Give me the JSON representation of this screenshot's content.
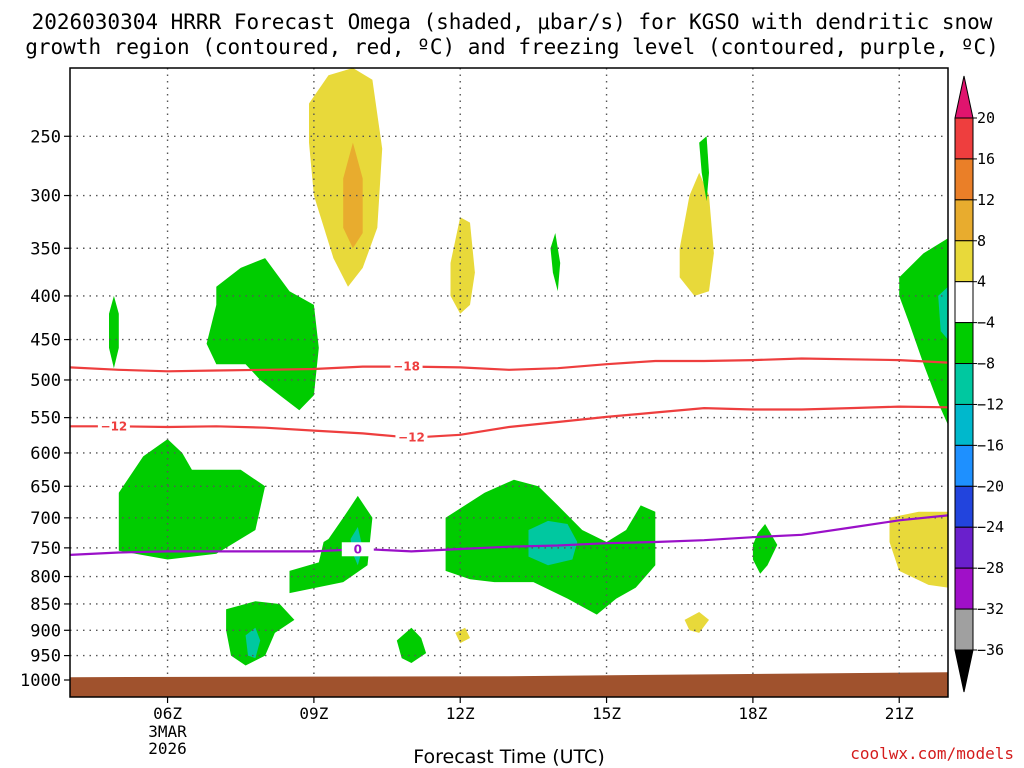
{
  "title": {
    "line1": "2026030304 HRRR Forecast Omega (shaded, μbar/s) for KGSO with dendritic snow",
    "line2": "growth region (contoured, red, ºC) and freezing level (contoured, purple, ºC)"
  },
  "xlabel": "Forecast Time (UTC)",
  "credit": "coolwx.com/models",
  "chart_data": {
    "type": "heatmap",
    "x_units": "forecast hour (hours after 2026-03-03 04Z)",
    "xlim": [
      0,
      18
    ],
    "y_units": "pressure (mb)",
    "ylim_top_to_bottom": [
      200,
      1000
    ],
    "x_ticks": [
      {
        "x": 2,
        "label": "06Z"
      },
      {
        "x": 5,
        "label": "09Z"
      },
      {
        "x": 8,
        "label": "12Z"
      },
      {
        "x": 11,
        "label": "15Z"
      },
      {
        "x": 14,
        "label": "18Z"
      },
      {
        "x": 17,
        "label": "21Z"
      }
    ],
    "date_label": [
      "3MAR",
      "2026"
    ],
    "y_ticks": [
      250,
      300,
      350,
      400,
      450,
      500,
      550,
      600,
      650,
      700,
      750,
      800,
      850,
      900,
      950,
      1000
    ],
    "colorbar": {
      "labels": [
        20,
        16,
        12,
        8,
        4,
        -4,
        -8,
        -12,
        -16,
        -20,
        -24,
        -28,
        -32,
        -36
      ],
      "bins": [
        {
          "lo": 16,
          "hi": 20,
          "color": "#ee3e3e"
        },
        {
          "lo": 12,
          "hi": 16,
          "color": "#ea7f28"
        },
        {
          "lo": 8,
          "hi": 12,
          "color": "#e8ac2e"
        },
        {
          "lo": 4,
          "hi": 8,
          "color": "#e8d93a"
        },
        {
          "lo": -4,
          "hi": 4,
          "color": "#ffffff"
        },
        {
          "lo": -8,
          "hi": -4,
          "color": "#00cc00"
        },
        {
          "lo": -12,
          "hi": -8,
          "color": "#00c8a0"
        },
        {
          "lo": -16,
          "hi": -12,
          "color": "#00b8cc"
        },
        {
          "lo": -20,
          "hi": -16,
          "color": "#1e90ff"
        },
        {
          "lo": -24,
          "hi": -20,
          "color": "#2244dd"
        },
        {
          "lo": -28,
          "hi": -24,
          "color": "#6a20cc"
        },
        {
          "lo": -32,
          "hi": -28,
          "color": "#a010c8"
        },
        {
          "lo": -36,
          "hi": -32,
          "color": "#a0a0a0"
        }
      ],
      "over_color": "#e0146e",
      "under_color": "#000000"
    },
    "omega_regions": [
      {
        "value": 6,
        "color": "#e8d93a",
        "points": [
          [
            4.9,
            225
          ],
          [
            5.3,
            205
          ],
          [
            5.8,
            200
          ],
          [
            6.2,
            208
          ],
          [
            6.4,
            260
          ],
          [
            6.3,
            330
          ],
          [
            6.0,
            370
          ],
          [
            5.7,
            390
          ],
          [
            5.4,
            360
          ],
          [
            5.0,
            300
          ],
          [
            4.9,
            255
          ]
        ]
      },
      {
        "value": 10,
        "color": "#e8ac2e",
        "points": [
          [
            5.6,
            285
          ],
          [
            5.8,
            255
          ],
          [
            6.0,
            285
          ],
          [
            6.0,
            335
          ],
          [
            5.8,
            350
          ],
          [
            5.6,
            330
          ]
        ]
      },
      {
        "value": 6,
        "color": "#e8d93a",
        "points": [
          [
            7.8,
            365
          ],
          [
            8.0,
            320
          ],
          [
            8.2,
            325
          ],
          [
            8.3,
            375
          ],
          [
            8.2,
            410
          ],
          [
            8.0,
            420
          ],
          [
            7.8,
            400
          ]
        ]
      },
      {
        "value": 6,
        "color": "#e8d93a",
        "points": [
          [
            12.5,
            350
          ],
          [
            12.7,
            300
          ],
          [
            12.9,
            280
          ],
          [
            13.1,
            300
          ],
          [
            13.2,
            355
          ],
          [
            13.1,
            395
          ],
          [
            12.8,
            400
          ],
          [
            12.5,
            380
          ]
        ]
      },
      {
        "value": 6,
        "color": "#e8d93a",
        "points": [
          [
            16.8,
            700
          ],
          [
            17.4,
            690
          ],
          [
            18,
            690
          ],
          [
            18,
            820
          ],
          [
            17.6,
            815
          ],
          [
            17.0,
            790
          ],
          [
            16.8,
            740
          ]
        ]
      },
      {
        "value": 6,
        "color": "#e8d93a",
        "points": [
          [
            12.6,
            880
          ],
          [
            12.9,
            865
          ],
          [
            13.1,
            880
          ],
          [
            12.9,
            905
          ],
          [
            12.7,
            900
          ]
        ]
      },
      {
        "value": 6,
        "color": "#e8d93a",
        "points": [
          [
            7.9,
            905
          ],
          [
            8.1,
            895
          ],
          [
            8.2,
            915
          ],
          [
            8.0,
            925
          ]
        ]
      },
      {
        "value": -6,
        "color": "#00cc00",
        "points": [
          [
            0.8,
            420
          ],
          [
            0.9,
            400
          ],
          [
            1.0,
            420
          ],
          [
            1.0,
            460
          ],
          [
            0.9,
            485
          ],
          [
            0.8,
            460
          ]
        ]
      },
      {
        "value": -6,
        "color": "#00cc00",
        "points": [
          [
            3.0,
            390
          ],
          [
            3.5,
            370
          ],
          [
            4.0,
            360
          ],
          [
            4.5,
            395
          ],
          [
            5.0,
            410
          ],
          [
            5.1,
            460
          ],
          [
            5.0,
            520
          ],
          [
            4.7,
            540
          ],
          [
            4.3,
            520
          ],
          [
            3.9,
            500
          ],
          [
            3.6,
            480
          ],
          [
            3.0,
            480
          ],
          [
            2.8,
            455
          ],
          [
            3.0,
            410
          ]
        ]
      },
      {
        "value": -6,
        "color": "#00cc00",
        "points": [
          [
            12.9,
            255
          ],
          [
            13.05,
            250
          ],
          [
            13.1,
            280
          ],
          [
            13.05,
            305
          ],
          [
            12.95,
            280
          ]
        ]
      },
      {
        "value": -6,
        "color": "#00cc00",
        "points": [
          [
            9.85,
            350
          ],
          [
            9.95,
            335
          ],
          [
            10.05,
            365
          ],
          [
            10.0,
            395
          ],
          [
            9.9,
            375
          ]
        ]
      },
      {
        "value": -6,
        "color": "#00cc00",
        "points": [
          [
            17.0,
            380
          ],
          [
            17.5,
            355
          ],
          [
            18,
            340
          ],
          [
            18,
            560
          ],
          [
            17.8,
            530
          ],
          [
            17.5,
            480
          ],
          [
            17.2,
            430
          ],
          [
            17.0,
            400
          ]
        ]
      },
      {
        "value": -10,
        "color": "#00c8a0",
        "points": [
          [
            17.8,
            400
          ],
          [
            18,
            390
          ],
          [
            18,
            450
          ],
          [
            17.85,
            440
          ]
        ]
      },
      {
        "value": -6,
        "color": "#00cc00",
        "points": [
          [
            1.0,
            660
          ],
          [
            1.5,
            605
          ],
          [
            2.0,
            580
          ],
          [
            2.3,
            600
          ],
          [
            2.5,
            625
          ],
          [
            3.5,
            625
          ],
          [
            4.0,
            650
          ],
          [
            3.8,
            720
          ],
          [
            3.0,
            760
          ],
          [
            2.0,
            770
          ],
          [
            1.0,
            755
          ],
          [
            1.0,
            680
          ]
        ]
      },
      {
        "value": -6,
        "color": "#00cc00",
        "points": [
          [
            5.3,
            735
          ],
          [
            5.6,
            700
          ],
          [
            5.9,
            665
          ],
          [
            6.2,
            700
          ],
          [
            6.1,
            780
          ],
          [
            5.6,
            810
          ],
          [
            4.5,
            830
          ],
          [
            4.5,
            790
          ],
          [
            5.1,
            775
          ],
          [
            5.2,
            740
          ]
        ]
      },
      {
        "value": -10,
        "color": "#00c8a0",
        "points": [
          [
            5.75,
            735
          ],
          [
            5.9,
            715
          ],
          [
            6.0,
            750
          ],
          [
            5.9,
            780
          ],
          [
            5.8,
            760
          ]
        ]
      },
      {
        "value": -6,
        "color": "#00cc00",
        "points": [
          [
            3.2,
            860
          ],
          [
            3.8,
            845
          ],
          [
            4.3,
            850
          ],
          [
            4.6,
            880
          ],
          [
            4.2,
            905
          ],
          [
            4.0,
            950
          ],
          [
            3.6,
            970
          ],
          [
            3.3,
            950
          ],
          [
            3.2,
            900
          ]
        ]
      },
      {
        "value": -10,
        "color": "#00c8a0",
        "points": [
          [
            3.6,
            910
          ],
          [
            3.8,
            895
          ],
          [
            3.9,
            920
          ],
          [
            3.8,
            955
          ],
          [
            3.65,
            950
          ]
        ]
      },
      {
        "value": -6,
        "color": "#00cc00",
        "points": [
          [
            6.7,
            920
          ],
          [
            7.0,
            895
          ],
          [
            7.2,
            915
          ],
          [
            7.3,
            945
          ],
          [
            7.0,
            965
          ],
          [
            6.8,
            955
          ]
        ]
      },
      {
        "value": -6,
        "color": "#00cc00",
        "points": [
          [
            7.7,
            700
          ],
          [
            8.5,
            660
          ],
          [
            9.1,
            640
          ],
          [
            9.6,
            650
          ],
          [
            10.0,
            680
          ],
          [
            10.5,
            720
          ],
          [
            11.0,
            740
          ],
          [
            11.4,
            720
          ],
          [
            11.7,
            680
          ],
          [
            12.0,
            690
          ],
          [
            12.0,
            780
          ],
          [
            11.6,
            820
          ],
          [
            11.2,
            840
          ],
          [
            10.8,
            870
          ],
          [
            10.2,
            840
          ],
          [
            9.5,
            810
          ],
          [
            8.7,
            810
          ],
          [
            8.2,
            805
          ],
          [
            7.7,
            790
          ],
          [
            7.7,
            720
          ]
        ]
      },
      {
        "value": -10,
        "color": "#00c8a0",
        "points": [
          [
            9.4,
            720
          ],
          [
            9.8,
            705
          ],
          [
            10.2,
            710
          ],
          [
            10.4,
            740
          ],
          [
            10.3,
            770
          ],
          [
            9.8,
            780
          ],
          [
            9.4,
            765
          ]
        ]
      },
      {
        "value": -6,
        "color": "#00cc00",
        "points": [
          [
            14.0,
            745
          ],
          [
            14.1,
            725
          ],
          [
            14.25,
            710
          ],
          [
            14.5,
            745
          ],
          [
            14.3,
            780
          ],
          [
            14.15,
            795
          ],
          [
            14.0,
            770
          ]
        ]
      }
    ],
    "contour_lines": [
      {
        "name": "-18",
        "label": "−18",
        "label_x": 6.9,
        "color": "#ee3e3e",
        "points": [
          [
            0,
            484
          ],
          [
            1,
            487
          ],
          [
            2,
            489
          ],
          [
            3,
            488
          ],
          [
            4,
            487
          ],
          [
            5,
            486
          ],
          [
            6,
            483
          ],
          [
            7,
            483
          ],
          [
            8,
            484
          ],
          [
            9,
            487
          ],
          [
            10,
            485
          ],
          [
            11,
            480
          ],
          [
            12,
            476
          ],
          [
            13,
            476
          ],
          [
            14,
            475
          ],
          [
            15,
            473
          ],
          [
            16,
            474
          ],
          [
            17,
            475
          ],
          [
            18,
            478
          ]
        ]
      },
      {
        "name": "-12",
        "label": "−12",
        "label_x": 0.9,
        "color": "#ee3e3e",
        "points": [
          [
            0,
            562
          ],
          [
            1,
            562
          ],
          [
            2,
            563
          ],
          [
            3,
            562
          ],
          [
            4,
            564
          ],
          [
            5,
            568
          ],
          [
            6,
            572
          ],
          [
            7,
            578
          ],
          [
            8,
            574
          ],
          [
            9,
            563
          ],
          [
            10,
            556
          ],
          [
            11,
            549
          ],
          [
            12,
            543
          ],
          [
            13,
            537
          ],
          [
            14,
            539
          ],
          [
            15,
            539
          ],
          [
            16,
            537
          ],
          [
            17,
            535
          ],
          [
            18,
            536
          ]
        ]
      },
      {
        "name": "-12b",
        "label": "−12",
        "label_x": 7.0,
        "color": "#ee3e3e",
        "label_only": true,
        "points": [
          [
            7,
            578
          ]
        ]
      },
      {
        "name": "0",
        "label": "0",
        "label_x": 5.9,
        "color": "#9a10c8",
        "points": [
          [
            0,
            762
          ],
          [
            1,
            758
          ],
          [
            2,
            756
          ],
          [
            3,
            756
          ],
          [
            4,
            756
          ],
          [
            5,
            756
          ],
          [
            6,
            752
          ],
          [
            7,
            756
          ],
          [
            8,
            752
          ],
          [
            9,
            748
          ],
          [
            10,
            746
          ],
          [
            11,
            742
          ],
          [
            12,
            740
          ],
          [
            13,
            737
          ],
          [
            14,
            732
          ],
          [
            15,
            728
          ],
          [
            16,
            716
          ],
          [
            17,
            704
          ],
          [
            18,
            696
          ]
        ]
      }
    ],
    "ground": {
      "color": "#a0522d",
      "top_pressure": 990
    }
  }
}
